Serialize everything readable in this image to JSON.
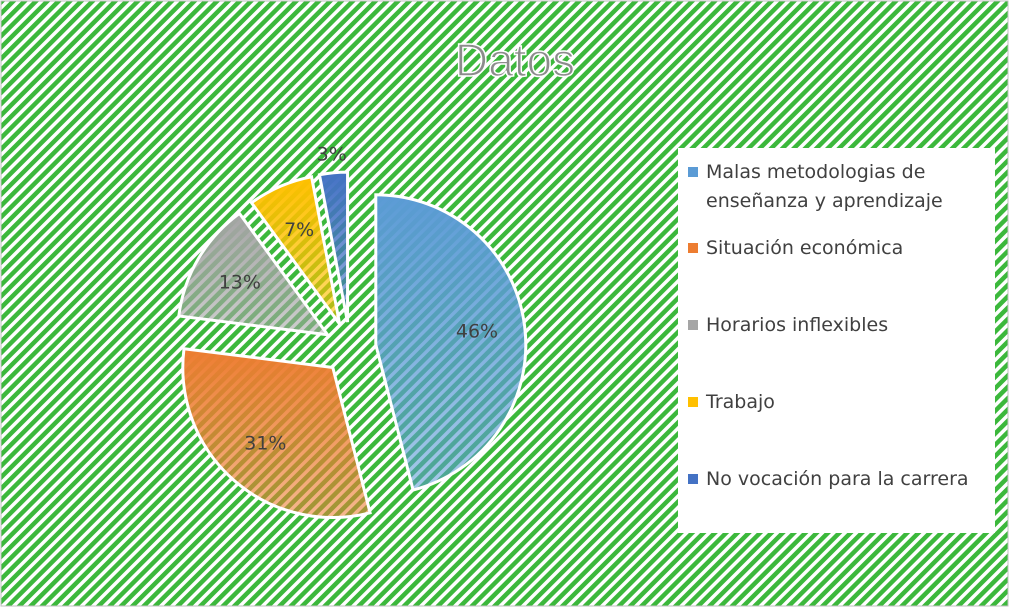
{
  "chart_data": {
    "type": "pie",
    "title": "Datos",
    "categories": [
      "Malas metodologias de enseñanza y aprendizaje",
      "Situación económica",
      "Horarios inflexibles",
      "Trabajo",
      "No vocación para la carrera"
    ],
    "values": [
      46,
      31,
      13,
      7,
      3
    ],
    "value_labels": [
      "46%",
      "31%",
      "13%",
      "7%",
      "3%"
    ],
    "colors": [
      "#5b9bd5",
      "#ed7d31",
      "#a5a5a5",
      "#ffc000",
      "#4472c4"
    ],
    "legend": "right",
    "exploded": true
  }
}
